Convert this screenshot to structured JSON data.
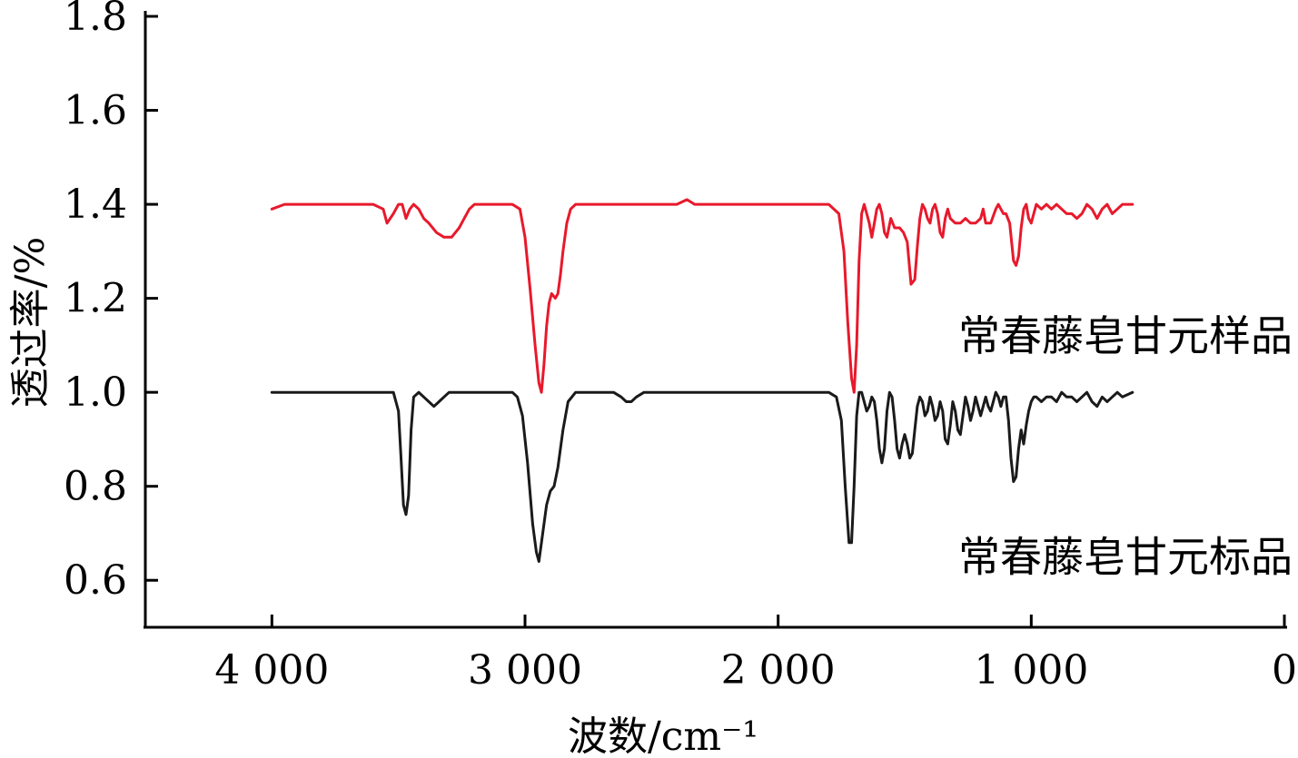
{
  "chart_data": {
    "type": "line",
    "xlabel": "波数/cm⁻¹",
    "ylabel": "透过率/%",
    "xlim": [
      4500,
      0
    ],
    "x_reversed": true,
    "ylim": [
      0.5,
      1.8
    ],
    "x_ticks": [
      {
        "value": 4000,
        "label": "4 000"
      },
      {
        "value": 3000,
        "label": "3 000"
      },
      {
        "value": 2000,
        "label": "2 000"
      },
      {
        "value": 1000,
        "label": "1 000"
      },
      {
        "value": 0,
        "label": "0"
      }
    ],
    "y_ticks": [
      {
        "value": 0.6,
        "label": "0.6"
      },
      {
        "value": 0.8,
        "label": "0.8"
      },
      {
        "value": 1.0,
        "label": "1.0"
      },
      {
        "value": 1.2,
        "label": "1.2"
      },
      {
        "value": 1.4,
        "label": "1.4"
      },
      {
        "value": 1.6,
        "label": "1.6"
      },
      {
        "value": 1.8,
        "label": "1.8"
      }
    ],
    "grid": false,
    "legend": "none",
    "series": [
      {
        "name": "常春藤皂甘元样品",
        "color": "#e8192c",
        "label_at": [
          1200,
          1.12
        ],
        "points": [
          [
            4000,
            1.39
          ],
          [
            3950,
            1.4
          ],
          [
            3600,
            1.4
          ],
          [
            3560,
            1.39
          ],
          [
            3545,
            1.36
          ],
          [
            3520,
            1.38
          ],
          [
            3500,
            1.4
          ],
          [
            3485,
            1.4
          ],
          [
            3470,
            1.37
          ],
          [
            3455,
            1.39
          ],
          [
            3440,
            1.4
          ],
          [
            3420,
            1.39
          ],
          [
            3400,
            1.37
          ],
          [
            3380,
            1.36
          ],
          [
            3350,
            1.34
          ],
          [
            3320,
            1.33
          ],
          [
            3290,
            1.33
          ],
          [
            3260,
            1.35
          ],
          [
            3240,
            1.37
          ],
          [
            3220,
            1.39
          ],
          [
            3200,
            1.4
          ],
          [
            3050,
            1.4
          ],
          [
            3020,
            1.39
          ],
          [
            3000,
            1.33
          ],
          [
            2980,
            1.22
          ],
          [
            2960,
            1.1
          ],
          [
            2945,
            1.02
          ],
          [
            2935,
            1.0
          ],
          [
            2925,
            1.06
          ],
          [
            2915,
            1.14
          ],
          [
            2905,
            1.19
          ],
          [
            2895,
            1.21
          ],
          [
            2880,
            1.2
          ],
          [
            2870,
            1.21
          ],
          [
            2860,
            1.25
          ],
          [
            2850,
            1.3
          ],
          [
            2835,
            1.36
          ],
          [
            2820,
            1.39
          ],
          [
            2800,
            1.4
          ],
          [
            2400,
            1.4
          ],
          [
            2360,
            1.41
          ],
          [
            2330,
            1.4
          ],
          [
            1800,
            1.4
          ],
          [
            1760,
            1.38
          ],
          [
            1740,
            1.3
          ],
          [
            1725,
            1.15
          ],
          [
            1710,
            1.03
          ],
          [
            1700,
            1.0
          ],
          [
            1690,
            1.1
          ],
          [
            1680,
            1.28
          ],
          [
            1670,
            1.38
          ],
          [
            1660,
            1.4
          ],
          [
            1650,
            1.38
          ],
          [
            1640,
            1.36
          ],
          [
            1630,
            1.33
          ],
          [
            1620,
            1.36
          ],
          [
            1610,
            1.39
          ],
          [
            1600,
            1.4
          ],
          [
            1590,
            1.38
          ],
          [
            1580,
            1.34
          ],
          [
            1570,
            1.33
          ],
          [
            1555,
            1.37
          ],
          [
            1540,
            1.35
          ],
          [
            1520,
            1.35
          ],
          [
            1505,
            1.34
          ],
          [
            1490,
            1.32
          ],
          [
            1475,
            1.23
          ],
          [
            1460,
            1.24
          ],
          [
            1450,
            1.31
          ],
          [
            1440,
            1.37
          ],
          [
            1430,
            1.4
          ],
          [
            1420,
            1.39
          ],
          [
            1410,
            1.37
          ],
          [
            1400,
            1.36
          ],
          [
            1390,
            1.39
          ],
          [
            1380,
            1.4
          ],
          [
            1370,
            1.38
          ],
          [
            1360,
            1.34
          ],
          [
            1350,
            1.33
          ],
          [
            1340,
            1.37
          ],
          [
            1330,
            1.39
          ],
          [
            1320,
            1.37
          ],
          [
            1300,
            1.36
          ],
          [
            1280,
            1.36
          ],
          [
            1260,
            1.37
          ],
          [
            1240,
            1.36
          ],
          [
            1220,
            1.36
          ],
          [
            1200,
            1.37
          ],
          [
            1190,
            1.39
          ],
          [
            1180,
            1.36
          ],
          [
            1160,
            1.36
          ],
          [
            1140,
            1.39
          ],
          [
            1130,
            1.4
          ],
          [
            1120,
            1.39
          ],
          [
            1110,
            1.38
          ],
          [
            1100,
            1.38
          ],
          [
            1085,
            1.36
          ],
          [
            1070,
            1.28
          ],
          [
            1060,
            1.27
          ],
          [
            1050,
            1.29
          ],
          [
            1040,
            1.35
          ],
          [
            1030,
            1.39
          ],
          [
            1020,
            1.4
          ],
          [
            1010,
            1.37
          ],
          [
            1000,
            1.36
          ],
          [
            990,
            1.38
          ],
          [
            980,
            1.4
          ],
          [
            960,
            1.39
          ],
          [
            940,
            1.4
          ],
          [
            920,
            1.39
          ],
          [
            900,
            1.4
          ],
          [
            880,
            1.39
          ],
          [
            860,
            1.38
          ],
          [
            840,
            1.38
          ],
          [
            820,
            1.37
          ],
          [
            800,
            1.38
          ],
          [
            780,
            1.4
          ],
          [
            760,
            1.39
          ],
          [
            740,
            1.37
          ],
          [
            720,
            1.39
          ],
          [
            700,
            1.4
          ],
          [
            680,
            1.38
          ],
          [
            660,
            1.39
          ],
          [
            640,
            1.4
          ],
          [
            600,
            1.4
          ]
        ]
      },
      {
        "name": "常春藤皂甘元标品",
        "color": "#1a1a1a",
        "label_at": [
          1200,
          0.65
        ],
        "points": [
          [
            4000,
            1.0
          ],
          [
            3560,
            1.0
          ],
          [
            3520,
            1.0
          ],
          [
            3500,
            0.96
          ],
          [
            3490,
            0.86
          ],
          [
            3480,
            0.76
          ],
          [
            3470,
            0.74
          ],
          [
            3460,
            0.78
          ],
          [
            3450,
            0.92
          ],
          [
            3440,
            0.99
          ],
          [
            3420,
            1.0
          ],
          [
            3400,
            0.99
          ],
          [
            3380,
            0.98
          ],
          [
            3360,
            0.97
          ],
          [
            3340,
            0.98
          ],
          [
            3320,
            0.99
          ],
          [
            3300,
            1.0
          ],
          [
            3050,
            1.0
          ],
          [
            3030,
            0.99
          ],
          [
            3010,
            0.95
          ],
          [
            2990,
            0.85
          ],
          [
            2970,
            0.72
          ],
          [
            2955,
            0.66
          ],
          [
            2945,
            0.64
          ],
          [
            2930,
            0.7
          ],
          [
            2915,
            0.76
          ],
          [
            2900,
            0.79
          ],
          [
            2885,
            0.8
          ],
          [
            2870,
            0.84
          ],
          [
            2850,
            0.92
          ],
          [
            2830,
            0.98
          ],
          [
            2800,
            1.0
          ],
          [
            2650,
            1.0
          ],
          [
            2620,
            0.99
          ],
          [
            2600,
            0.98
          ],
          [
            2580,
            0.98
          ],
          [
            2560,
            0.99
          ],
          [
            2530,
            1.0
          ],
          [
            1800,
            1.0
          ],
          [
            1770,
            0.99
          ],
          [
            1750,
            0.94
          ],
          [
            1735,
            0.8
          ],
          [
            1720,
            0.68
          ],
          [
            1710,
            0.68
          ],
          [
            1700,
            0.8
          ],
          [
            1690,
            0.95
          ],
          [
            1680,
            1.0
          ],
          [
            1670,
            1.0
          ],
          [
            1660,
            0.98
          ],
          [
            1650,
            0.96
          ],
          [
            1640,
            0.97
          ],
          [
            1630,
            0.99
          ],
          [
            1620,
            0.98
          ],
          [
            1610,
            0.94
          ],
          [
            1600,
            0.88
          ],
          [
            1590,
            0.85
          ],
          [
            1580,
            0.88
          ],
          [
            1570,
            0.96
          ],
          [
            1560,
            1.0
          ],
          [
            1550,
            0.99
          ],
          [
            1540,
            0.94
          ],
          [
            1530,
            0.88
          ],
          [
            1520,
            0.86
          ],
          [
            1510,
            0.89
          ],
          [
            1500,
            0.91
          ],
          [
            1490,
            0.89
          ],
          [
            1480,
            0.86
          ],
          [
            1470,
            0.87
          ],
          [
            1460,
            0.92
          ],
          [
            1450,
            0.97
          ],
          [
            1440,
            0.99
          ],
          [
            1430,
            0.98
          ],
          [
            1420,
            0.95
          ],
          [
            1410,
            0.96
          ],
          [
            1400,
            0.99
          ],
          [
            1390,
            0.97
          ],
          [
            1380,
            0.94
          ],
          [
            1370,
            0.95
          ],
          [
            1360,
            0.98
          ],
          [
            1350,
            0.96
          ],
          [
            1340,
            0.9
          ],
          [
            1330,
            0.89
          ],
          [
            1320,
            0.93
          ],
          [
            1310,
            0.98
          ],
          [
            1300,
            0.96
          ],
          [
            1290,
            0.92
          ],
          [
            1280,
            0.91
          ],
          [
            1270,
            0.95
          ],
          [
            1260,
            0.99
          ],
          [
            1250,
            0.97
          ],
          [
            1240,
            0.94
          ],
          [
            1230,
            0.96
          ],
          [
            1220,
            0.99
          ],
          [
            1210,
            0.97
          ],
          [
            1200,
            0.95
          ],
          [
            1190,
            0.97
          ],
          [
            1180,
            0.99
          ],
          [
            1170,
            0.97
          ],
          [
            1160,
            0.96
          ],
          [
            1150,
            0.98
          ],
          [
            1140,
            1.0
          ],
          [
            1130,
            0.99
          ],
          [
            1120,
            0.97
          ],
          [
            1110,
            0.99
          ],
          [
            1100,
            0.99
          ],
          [
            1090,
            0.94
          ],
          [
            1080,
            0.86
          ],
          [
            1070,
            0.81
          ],
          [
            1060,
            0.82
          ],
          [
            1050,
            0.88
          ],
          [
            1040,
            0.92
          ],
          [
            1030,
            0.89
          ],
          [
            1020,
            0.93
          ],
          [
            1010,
            0.96
          ],
          [
            1000,
            0.98
          ],
          [
            990,
            0.99
          ],
          [
            980,
            0.99
          ],
          [
            960,
            0.98
          ],
          [
            940,
            0.99
          ],
          [
            920,
            0.99
          ],
          [
            900,
            0.98
          ],
          [
            880,
            1.0
          ],
          [
            860,
            0.99
          ],
          [
            840,
            0.99
          ],
          [
            820,
            0.98
          ],
          [
            800,
            0.99
          ],
          [
            780,
            1.0
          ],
          [
            760,
            0.98
          ],
          [
            740,
            0.97
          ],
          [
            720,
            0.99
          ],
          [
            700,
            0.98
          ],
          [
            680,
            0.99
          ],
          [
            660,
            1.0
          ],
          [
            640,
            0.99
          ],
          [
            600,
            1.0
          ]
        ]
      }
    ]
  }
}
